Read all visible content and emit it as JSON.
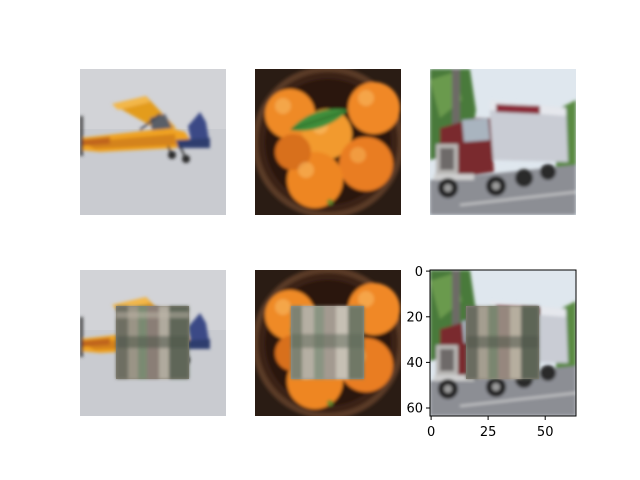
{
  "figure": {
    "background_color": "#ffffff",
    "grid": {
      "rows": 2,
      "cols": 3
    },
    "top_row": [
      {
        "subject": "yellow-airplane",
        "colors": {
          "sky": "#c9cbd0",
          "body": "#f0a320",
          "trim": "#c0651a",
          "tail": "#3a4a86"
        }
      },
      {
        "subject": "bowl-of-oranges",
        "colors": {
          "bowl": "#3b2418",
          "orange": "#ef8a25",
          "leaf": "#3f8e3a"
        }
      },
      {
        "subject": "red-truck",
        "colors": {
          "sky": "#dfe7ee",
          "tree": "#4a7a3a",
          "cab": "#7a2a2e",
          "trailer": "#c9ccd4",
          "road": "#8c8e94"
        }
      }
    ],
    "bottom_row_note": "same three images with a blurred square patch covering the center",
    "patch_colors": [
      "#6e6e62",
      "#9a9486",
      "#7a8a72",
      "#8a7e76",
      "#b0aa9e",
      "#5e6658"
    ],
    "axes_on_last_panel": {
      "xticks": [
        "0",
        "25",
        "50"
      ],
      "yticks": [
        "0",
        "20",
        "40",
        "60"
      ],
      "xlim": [
        0,
        64
      ],
      "ylim": [
        64,
        0
      ]
    }
  }
}
